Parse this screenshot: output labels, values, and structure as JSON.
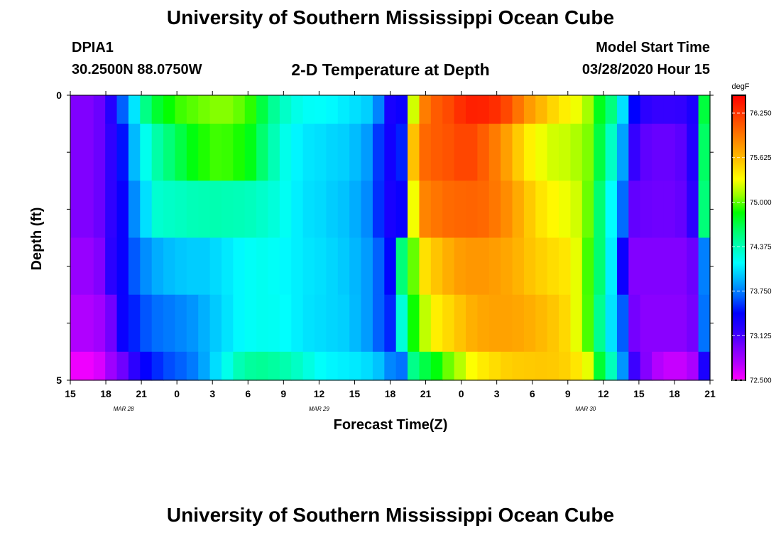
{
  "header": {
    "title": "University of Southern Mississippi Ocean Cube",
    "station": "DPIA1",
    "coordinates": "30.2500N 88.0750W",
    "subtitle": "2-D Temperature at Depth",
    "model_start_label": "Model Start Time",
    "model_start_value": "03/28/2020 Hour 15"
  },
  "footer": {
    "title": "University of Southern Mississippi Ocean Cube"
  },
  "chart_data": {
    "type": "heatmap",
    "title": "2-D Temperature at Depth",
    "xlabel": "Forecast Time(Z)",
    "ylabel": "Depth (ft)",
    "x_tick_labels": [
      "15",
      "18",
      "21",
      "0",
      "3",
      "6",
      "9",
      "12",
      "15",
      "18",
      "21",
      "0",
      "3",
      "6",
      "9",
      "12",
      "15",
      "18",
      "21"
    ],
    "date_labels": [
      {
        "text": "MAR  28",
        "after_tick": 1
      },
      {
        "text": "MAR  29",
        "after_tick": 6.5
      },
      {
        "text": "MAR  30",
        "after_tick": 14
      }
    ],
    "y_tick_labels": [
      "0",
      "5"
    ],
    "ylim": [
      0,
      5
    ],
    "colorbar": {
      "unit": "degF",
      "min": 72.5,
      "max": 76.5,
      "tick_labels": [
        "76.250",
        "75.625",
        "75.000",
        "74.375",
        "73.750",
        "73.125",
        "72.500"
      ],
      "colors": [
        "#ff00ff",
        "#b400ff",
        "#7800ff",
        "#2d00ff",
        "#0000ff",
        "#0064ff",
        "#00b4ff",
        "#00ffff",
        "#00ffb4",
        "#00ff64",
        "#00ff00",
        "#96ff00",
        "#ffff00",
        "#ffc800",
        "#ff9600",
        "#ff6400",
        "#ff3200",
        "#ff0000"
      ]
    },
    "x_hours": [
      15,
      16,
      17,
      18,
      19,
      20,
      21,
      22,
      23,
      0,
      1,
      2,
      3,
      4,
      5,
      6,
      7,
      8,
      9,
      10,
      11,
      12,
      13,
      14,
      15,
      16,
      17,
      18,
      19,
      20,
      21,
      22,
      23,
      0,
      1,
      2,
      3,
      4,
      5,
      6,
      7,
      8,
      9,
      10,
      11,
      12,
      13,
      14,
      15,
      16,
      17,
      18,
      19,
      20,
      21
    ],
    "depth_layers": [
      {
        "depth_top": 0.0,
        "depth_bottom": 0.5,
        "values": [
          72.94,
          72.94,
          73.01,
          73.25,
          73.67,
          74.07,
          74.52,
          74.74,
          74.86,
          74.95,
          74.99,
          75.03,
          75.06,
          75.06,
          75.01,
          74.92,
          74.7,
          74.47,
          74.32,
          74.22,
          74.17,
          74.16,
          74.13,
          74.09,
          74.05,
          74.0,
          73.77,
          73.32,
          73.38,
          75.22,
          75.91,
          76.07,
          76.15,
          76.28,
          76.35,
          76.34,
          76.29,
          76.16,
          75.96,
          75.77,
          75.64,
          75.5,
          75.39,
          75.29,
          75.12,
          74.79,
          74.54,
          74.05,
          73.44,
          73.21,
          73.18,
          73.18,
          73.19,
          73.3,
          74.71
        ]
      },
      {
        "depth_top": 0.5,
        "depth_bottom": 1.5,
        "values": [
          72.94,
          72.94,
          73.01,
          73.2,
          73.48,
          73.93,
          74.2,
          74.42,
          74.56,
          74.69,
          74.82,
          74.9,
          74.95,
          74.94,
          74.89,
          74.8,
          74.59,
          74.38,
          74.21,
          74.12,
          74.07,
          74.05,
          74.02,
          74.0,
          73.94,
          73.84,
          73.57,
          73.35,
          73.52,
          75.59,
          76.01,
          76.07,
          76.11,
          76.17,
          76.17,
          76.06,
          75.92,
          75.75,
          75.55,
          75.38,
          75.29,
          75.22,
          75.2,
          75.14,
          75.05,
          74.7,
          74.33,
          73.86,
          73.18,
          73.05,
          73.02,
          73.02,
          73.06,
          73.27,
          74.62
        ]
      },
      {
        "depth_top": 1.5,
        "depth_bottom": 2.5,
        "values": [
          72.94,
          72.94,
          73.01,
          73.2,
          73.4,
          73.79,
          74.05,
          74.29,
          74.32,
          74.34,
          74.37,
          74.38,
          74.39,
          74.38,
          74.37,
          74.35,
          74.31,
          74.26,
          74.18,
          74.1,
          74.05,
          74.03,
          73.99,
          73.96,
          73.89,
          73.79,
          73.55,
          73.32,
          73.39,
          75.3,
          75.88,
          75.95,
          76.0,
          76.02,
          76.03,
          76.01,
          75.94,
          75.84,
          75.7,
          75.55,
          75.43,
          75.35,
          75.29,
          75.22,
          75.02,
          74.58,
          74.15,
          73.7,
          73.04,
          73.01,
          73.0,
          73.0,
          73.03,
          73.21,
          74.56
        ]
      },
      {
        "depth_top": 2.5,
        "depth_bottom": 3.5,
        "values": [
          72.85,
          72.85,
          72.93,
          73.22,
          73.4,
          73.65,
          73.8,
          73.89,
          73.94,
          73.97,
          73.99,
          73.99,
          74.03,
          74.08,
          74.13,
          74.17,
          74.19,
          74.17,
          74.13,
          74.1,
          74.07,
          74.05,
          74.02,
          73.98,
          73.92,
          73.84,
          73.67,
          73.45,
          74.56,
          75.01,
          75.45,
          75.58,
          75.68,
          75.76,
          75.79,
          75.79,
          75.76,
          75.72,
          75.66,
          75.58,
          75.52,
          75.47,
          75.43,
          75.27,
          74.96,
          74.58,
          74.1,
          73.38,
          72.93,
          72.93,
          72.93,
          72.93,
          72.93,
          73.01,
          73.76
        ]
      },
      {
        "depth_top": 3.5,
        "depth_bottom": 4.5,
        "values": [
          72.75,
          72.75,
          72.81,
          72.99,
          73.39,
          73.52,
          73.64,
          73.71,
          73.74,
          73.78,
          73.82,
          73.9,
          73.98,
          74.06,
          74.13,
          74.17,
          74.19,
          74.18,
          74.15,
          74.1,
          74.06,
          74.04,
          74.02,
          74.0,
          73.93,
          73.84,
          73.67,
          73.53,
          74.27,
          74.87,
          75.18,
          75.39,
          75.48,
          75.58,
          75.67,
          75.72,
          75.74,
          75.74,
          75.72,
          75.68,
          75.63,
          75.57,
          75.49,
          75.27,
          74.97,
          74.49,
          74.06,
          73.66,
          72.98,
          72.9,
          72.9,
          72.9,
          72.9,
          72.98,
          73.72
        ]
      },
      {
        "depth_top": 4.5,
        "depth_bottom": 5.0,
        "values": [
          72.55,
          72.55,
          72.62,
          72.82,
          73.0,
          73.21,
          73.42,
          73.54,
          73.62,
          73.67,
          73.74,
          73.87,
          74.04,
          74.21,
          74.38,
          74.45,
          74.47,
          74.44,
          74.4,
          74.33,
          74.24,
          74.16,
          74.12,
          74.1,
          74.08,
          74.04,
          73.96,
          73.78,
          73.72,
          74.51,
          74.69,
          74.83,
          75.02,
          75.16,
          75.32,
          75.41,
          75.47,
          75.52,
          75.54,
          75.55,
          75.56,
          75.55,
          75.52,
          75.43,
          75.27,
          74.74,
          74.36,
          73.82,
          73.16,
          72.92,
          72.74,
          72.68,
          72.68,
          72.77,
          73.3
        ]
      }
    ]
  }
}
